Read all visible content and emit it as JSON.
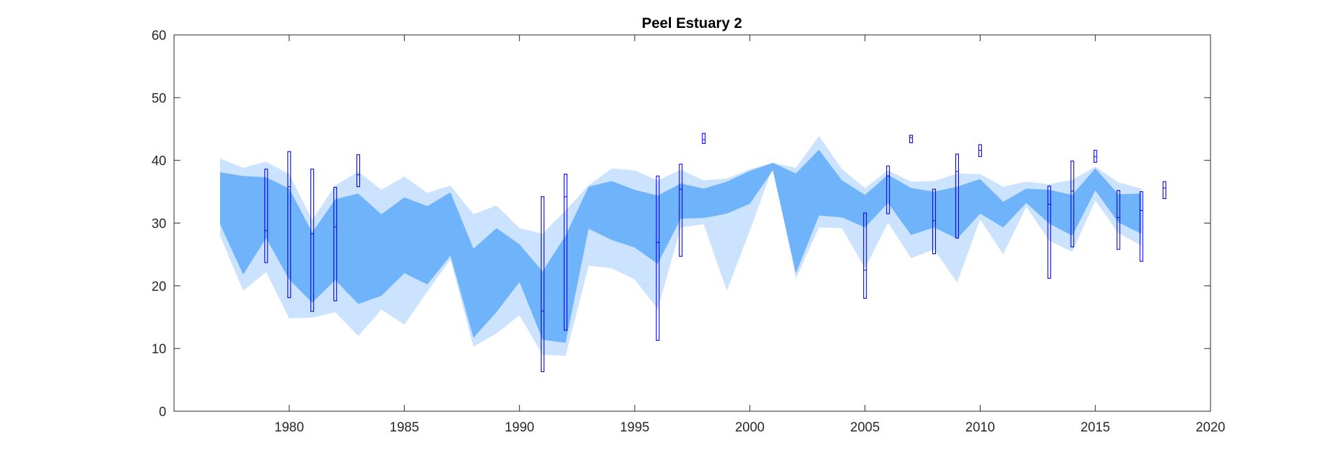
{
  "chart_data": {
    "type": "area",
    "title": "Peel Estuary 2",
    "xlabel": "",
    "ylabel": "",
    "xlim": [
      1975,
      2020
    ],
    "ylim": [
      0,
      60
    ],
    "xticks": [
      1980,
      1985,
      1990,
      1995,
      2000,
      2005,
      2010,
      2015,
      2020
    ],
    "yticks": [
      0,
      10,
      20,
      30,
      40,
      50,
      60
    ],
    "grid": false,
    "colors": {
      "outer_band": "#cce3ff",
      "inner_band": "#6fb3fa",
      "box": "#0000e6",
      "axis": "#262626"
    },
    "outer_band": {
      "x": [
        1977,
        1978,
        1979,
        1980,
        1981,
        1982,
        1983,
        1984,
        1985,
        1986,
        1987,
        1988,
        1989,
        1990,
        1991,
        1992,
        1993,
        1994,
        1995,
        1996,
        1997,
        1998,
        1999,
        2000,
        2001,
        2002,
        2003,
        2004,
        2005,
        2006,
        2007,
        2008,
        2009,
        2010,
        2011,
        2012,
        2013,
        2014,
        2015,
        2016,
        2017
      ],
      "upper": [
        40.3,
        38.8,
        39.8,
        37.8,
        30.5,
        36.0,
        38.2,
        35.3,
        37.4,
        34.8,
        36.0,
        31.4,
        32.8,
        29.2,
        28.3,
        32.0,
        36.0,
        38.7,
        38.4,
        36.8,
        38.5,
        36.8,
        37.1,
        38.6,
        39.6,
        38.8,
        43.9,
        38.6,
        35.6,
        38.4,
        36.6,
        36.7,
        37.9,
        37.8,
        35.8,
        36.6,
        36.2,
        36.9,
        39.0,
        36.5,
        35.5
      ],
      "lower": [
        28.0,
        19.2,
        22.2,
        14.8,
        14.9,
        15.8,
        12.0,
        16.2,
        13.8,
        19.1,
        24.2,
        10.3,
        12.4,
        15.3,
        9.0,
        8.8,
        23.2,
        22.8,
        21.0,
        16.3,
        29.3,
        29.8,
        19.2,
        28.8,
        38.9,
        21.2,
        29.3,
        29.2,
        22.8,
        30.1,
        24.4,
        25.8,
        20.5,
        30.6,
        25.0,
        32.6,
        27.2,
        25.4,
        33.6,
        28.4,
        26.4
      ]
    },
    "inner_band": {
      "x": [
        1977,
        1978,
        1979,
        1980,
        1981,
        1982,
        1983,
        1984,
        1985,
        1986,
        1987,
        1988,
        1989,
        1990,
        1991,
        1992,
        1993,
        1994,
        1995,
        1996,
        1997,
        1998,
        1999,
        2000,
        2001,
        2002,
        2003,
        2004,
        2005,
        2006,
        2007,
        2008,
        2009,
        2010,
        2011,
        2012,
        2013,
        2014,
        2015,
        2016,
        2017
      ],
      "upper": [
        38.1,
        37.5,
        37.3,
        35.5,
        28.5,
        33.8,
        34.7,
        31.4,
        34.1,
        32.7,
        34.9,
        25.9,
        29.2,
        26.6,
        22.3,
        28.0,
        35.8,
        36.7,
        35.3,
        34.4,
        36.3,
        35.5,
        36.6,
        38.3,
        39.6,
        37.9,
        41.7,
        36.8,
        34.5,
        37.7,
        35.6,
        35.0,
        35.8,
        37.0,
        33.4,
        35.5,
        35.3,
        34.5,
        38.7,
        34.6,
        34.7
      ],
      "lower": [
        29.8,
        21.8,
        27.6,
        21.0,
        17.3,
        20.9,
        17.1,
        18.4,
        22.0,
        20.2,
        24.8,
        11.7,
        15.8,
        20.6,
        11.4,
        10.9,
        29.1,
        27.3,
        26.1,
        23.5,
        30.7,
        30.8,
        31.5,
        33.1,
        38.4,
        22.0,
        31.2,
        30.9,
        29.3,
        33.2,
        28.1,
        29.3,
        27.5,
        31.5,
        29.3,
        33.2,
        29.9,
        28.0,
        35.2,
        30.1,
        28.3
      ]
    },
    "boxes": [
      {
        "x": 1979,
        "low": 23.7,
        "high": 38.6,
        "median": 28.8
      },
      {
        "x": 1980,
        "low": 18.1,
        "high": 41.4,
        "median": 35.8
      },
      {
        "x": 1981,
        "low": 15.9,
        "high": 38.6,
        "median": 28.3
      },
      {
        "x": 1982,
        "low": 17.6,
        "high": 35.7,
        "median": 29.4
      },
      {
        "x": 1983,
        "low": 35.8,
        "high": 40.9,
        "median": 37.7
      },
      {
        "x": 1991,
        "low": 6.3,
        "high": 34.2,
        "median": 16.0
      },
      {
        "x": 1992,
        "low": 12.9,
        "high": 37.8,
        "median": 34.2
      },
      {
        "x": 1996,
        "low": 11.3,
        "high": 37.5,
        "median": 26.9
      },
      {
        "x": 1997,
        "low": 24.7,
        "high": 39.4,
        "median": 35.4
      },
      {
        "x": 1998,
        "low": 42.7,
        "high": 44.3,
        "median": 43.3
      },
      {
        "x": 2005,
        "low": 18.0,
        "high": 31.6,
        "median": 22.5
      },
      {
        "x": 2006,
        "low": 31.5,
        "high": 39.1,
        "median": 37.5
      },
      {
        "x": 2007,
        "low": 42.8,
        "high": 44.0,
        "median": 43.6
      },
      {
        "x": 2008,
        "low": 25.1,
        "high": 35.4,
        "median": 30.4
      },
      {
        "x": 2009,
        "low": 27.6,
        "high": 41.0,
        "median": 38.2
      },
      {
        "x": 2010,
        "low": 40.6,
        "high": 42.5,
        "median": 41.6
      },
      {
        "x": 2013,
        "low": 21.2,
        "high": 35.9,
        "median": 33.0
      },
      {
        "x": 2014,
        "low": 26.2,
        "high": 39.9,
        "median": 35.1
      },
      {
        "x": 2015,
        "low": 39.7,
        "high": 41.6,
        "median": 40.6
      },
      {
        "x": 2016,
        "low": 25.8,
        "high": 35.2,
        "median": 30.9
      },
      {
        "x": 2017,
        "low": 23.9,
        "high": 35.0,
        "median": 32.0
      },
      {
        "x": 2018,
        "low": 33.9,
        "high": 36.6,
        "median": 35.6
      }
    ]
  }
}
